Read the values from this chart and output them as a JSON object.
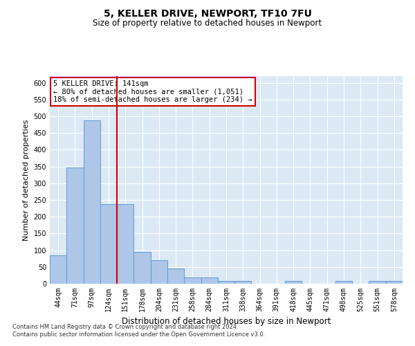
{
  "title": "5, KELLER DRIVE, NEWPORT, TF10 7FU",
  "subtitle": "Size of property relative to detached houses in Newport",
  "xlabel": "Distribution of detached houses by size in Newport",
  "ylabel": "Number of detached properties",
  "footnote1": "Contains HM Land Registry data © Crown copyright and database right 2024.",
  "footnote2": "Contains public sector information licensed under the Open Government Licence v3.0.",
  "annotation_line1": "5 KELLER DRIVE: 141sqm",
  "annotation_line2": "← 80% of detached houses are smaller (1,051)",
  "annotation_line3": "18% of semi-detached houses are larger (234) →",
  "bar_categories": [
    "44sqm",
    "71sqm",
    "97sqm",
    "124sqm",
    "151sqm",
    "178sqm",
    "204sqm",
    "231sqm",
    "258sqm",
    "284sqm",
    "311sqm",
    "338sqm",
    "364sqm",
    "391sqm",
    "418sqm",
    "445sqm",
    "471sqm",
    "498sqm",
    "525sqm",
    "551sqm",
    "578sqm"
  ],
  "bar_values": [
    85,
    348,
    487,
    237,
    237,
    95,
    70,
    45,
    18,
    18,
    8,
    8,
    0,
    0,
    8,
    0,
    0,
    8,
    0,
    8,
    8
  ],
  "bar_color": "#aec6e8",
  "bar_edge_color": "#5b9bd5",
  "red_line_color": "#cc0000",
  "annotation_box_color": "#cc0000",
  "background_color": "#dce9f5",
  "ylim": [
    0,
    620
  ],
  "yticks": [
    0,
    50,
    100,
    150,
    200,
    250,
    300,
    350,
    400,
    450,
    500,
    550,
    600
  ],
  "red_line_index": 4,
  "title_fontsize": 10,
  "subtitle_fontsize": 8.5,
  "ylabel_fontsize": 8,
  "xlabel_fontsize": 8.5,
  "tick_fontsize": 7,
  "annotation_fontsize": 7.5,
  "footnote_fontsize": 6
}
